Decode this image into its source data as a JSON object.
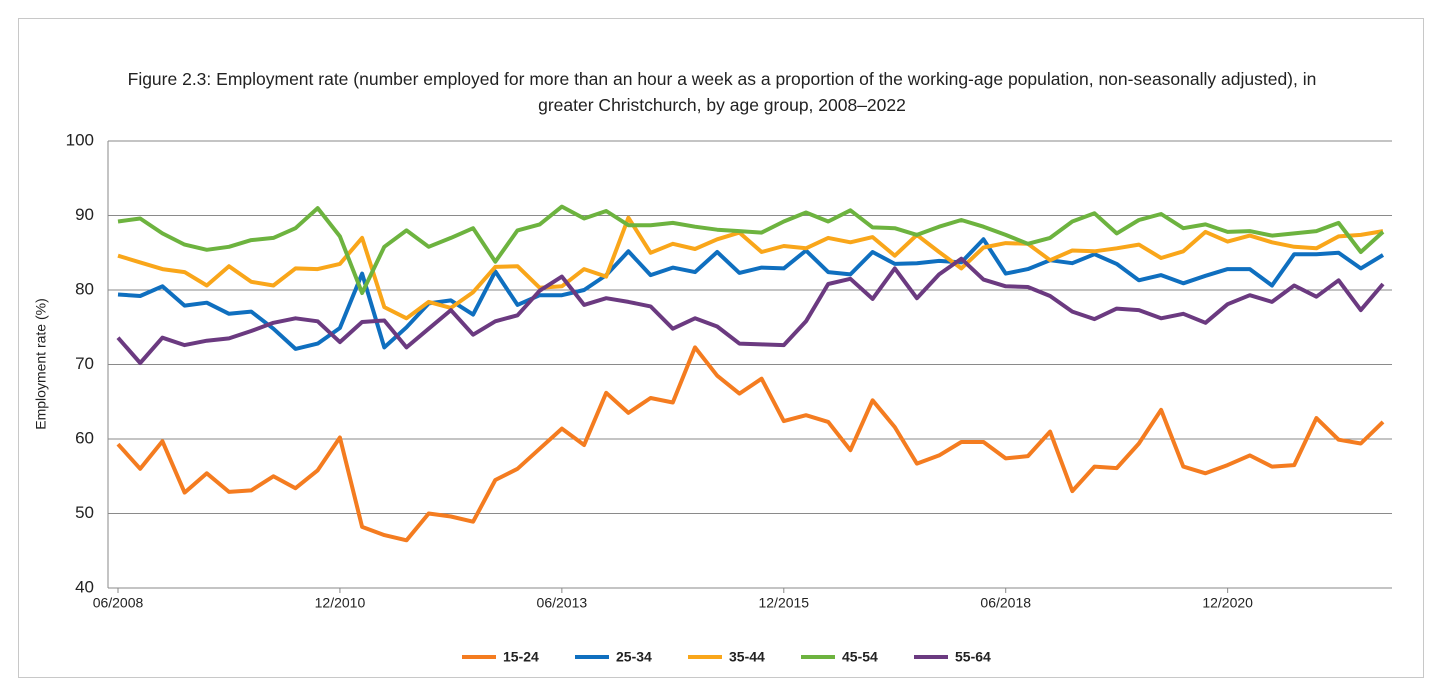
{
  "chart_data": {
    "type": "line",
    "title": "Figure 2.3: Employment rate (number employed for more than an hour a week as a proportion of the working-age population, non-seasonally adjusted), in greater Christchurch, by age group, 2008–2022",
    "y_label": "Employment rate (%)",
    "categories": [
      "06/2008",
      null,
      null,
      null,
      null,
      null,
      null,
      null,
      null,
      null,
      "12/2010",
      null,
      null,
      null,
      null,
      null,
      null,
      null,
      null,
      null,
      "06/2013",
      null,
      null,
      null,
      null,
      null,
      null,
      null,
      null,
      null,
      "12/2015",
      null,
      null,
      null,
      null,
      null,
      null,
      null,
      null,
      null,
      "06/2018",
      null,
      null,
      null,
      null,
      null,
      null,
      null,
      null,
      null,
      "12/2020",
      null,
      null,
      null,
      null,
      null,
      null,
      null
    ],
    "ylim": [
      40,
      100
    ],
    "yticks": [
      40,
      50,
      60,
      70,
      80,
      90,
      100
    ],
    "grid": true,
    "legend": "bottom",
    "series": [
      {
        "name": "15-24",
        "color": "#f47c20",
        "values": [
          59.3,
          56,
          59.7,
          52.8,
          55.4,
          52.9,
          53.1,
          55,
          53.4,
          55.8,
          60.2,
          48.2,
          47.1,
          46.4,
          50,
          49.6,
          48.9,
          54.5,
          56,
          58.7,
          61.4,
          59.2,
          66.2,
          63.5,
          65.5,
          64.9,
          72.3,
          68.5,
          66.1,
          68.1,
          62.4,
          63.2,
          62.3,
          58.5,
          65.2,
          61.6,
          56.7,
          57.8,
          59.6,
          59.6,
          57.4,
          57.7,
          61,
          53,
          56.3,
          56.1,
          59.4,
          63.9,
          56.3,
          55.4,
          56.5,
          57.8,
          56.3,
          56.5,
          62.8,
          59.9,
          59.4,
          62.3
        ]
      },
      {
        "name": "25-34",
        "color": "#0f6fbf",
        "values": [
          79.4,
          79.2,
          80.5,
          77.9,
          78.3,
          76.8,
          77.1,
          74.8,
          72.1,
          72.8,
          74.9,
          82.2,
          72.3,
          75,
          78.2,
          78.6,
          76.7,
          82.5,
          78,
          79.3,
          79.3,
          80,
          82,
          85.2,
          82,
          83,
          82.4,
          85.1,
          82.3,
          83,
          82.9,
          85.3,
          82.4,
          82.1,
          85.1,
          83.5,
          83.6,
          83.9,
          83.7,
          86.8,
          82.2,
          82.8,
          84,
          83.6,
          84.8,
          83.5,
          81.3,
          82,
          80.9,
          81.9,
          82.8,
          82.8,
          80.6,
          84.8,
          84.8,
          85,
          82.9,
          84.7
        ]
      },
      {
        "name": "35-44",
        "color": "#f9a61a",
        "values": [
          84.6,
          83.7,
          82.8,
          82.4,
          80.6,
          83.2,
          81.1,
          80.6,
          82.9,
          82.8,
          83.5,
          87,
          77.7,
          76.2,
          78.4,
          77.6,
          79.7,
          83.1,
          83.2,
          80.3,
          80.5,
          82.8,
          81.8,
          89.7,
          85,
          86.2,
          85.5,
          86.8,
          87.7,
          85.1,
          85.9,
          85.6,
          87,
          86.4,
          87.1,
          84.6,
          87.4,
          85.1,
          82.9,
          85.7,
          86.3,
          86.2,
          84,
          85.3,
          85.2,
          85.6,
          86.1,
          84.3,
          85.2,
          87.8,
          86.5,
          87.3,
          86.4,
          85.8,
          85.6,
          87.2,
          87.4,
          87.9
        ]
      },
      {
        "name": "45-54",
        "color": "#6db33f",
        "values": [
          89.2,
          89.6,
          87.6,
          86.1,
          85.4,
          85.8,
          86.7,
          87,
          88.3,
          91,
          87.2,
          79.6,
          85.8,
          88,
          85.8,
          87,
          88.3,
          83.8,
          88,
          88.8,
          91.2,
          89.6,
          90.6,
          88.7,
          88.7,
          89,
          88.5,
          88.1,
          87.9,
          87.7,
          89.2,
          90.4,
          89.2,
          90.7,
          88.4,
          88.3,
          87.4,
          88.5,
          89.4,
          88.5,
          87.4,
          86.2,
          87,
          89.2,
          90.3,
          87.6,
          89.4,
          90.2,
          88.3,
          88.8,
          87.8,
          87.9,
          87.3,
          87.6,
          87.9,
          89,
          85.1,
          87.8
        ]
      },
      {
        "name": "55-64",
        "color": "#6b3a80",
        "values": [
          73.6,
          70.2,
          73.6,
          72.6,
          73.2,
          73.5,
          74.5,
          75.6,
          76.2,
          75.8,
          73,
          75.7,
          75.9,
          72.3,
          74.8,
          77.3,
          74,
          75.8,
          76.6,
          79.9,
          81.8,
          78,
          78.9,
          78.4,
          77.8,
          74.8,
          76.2,
          75.1,
          72.8,
          72.7,
          72.6,
          75.8,
          80.8,
          81.5,
          78.8,
          82.9,
          78.9,
          82.1,
          84.2,
          81.4,
          80.5,
          80.4,
          79.2,
          77.1,
          76.1,
          77.5,
          77.3,
          76.2,
          76.8,
          75.6,
          78.1,
          79.3,
          78.4,
          80.6,
          79.1,
          81.3,
          77.3,
          80.8
        ]
      }
    ]
  }
}
